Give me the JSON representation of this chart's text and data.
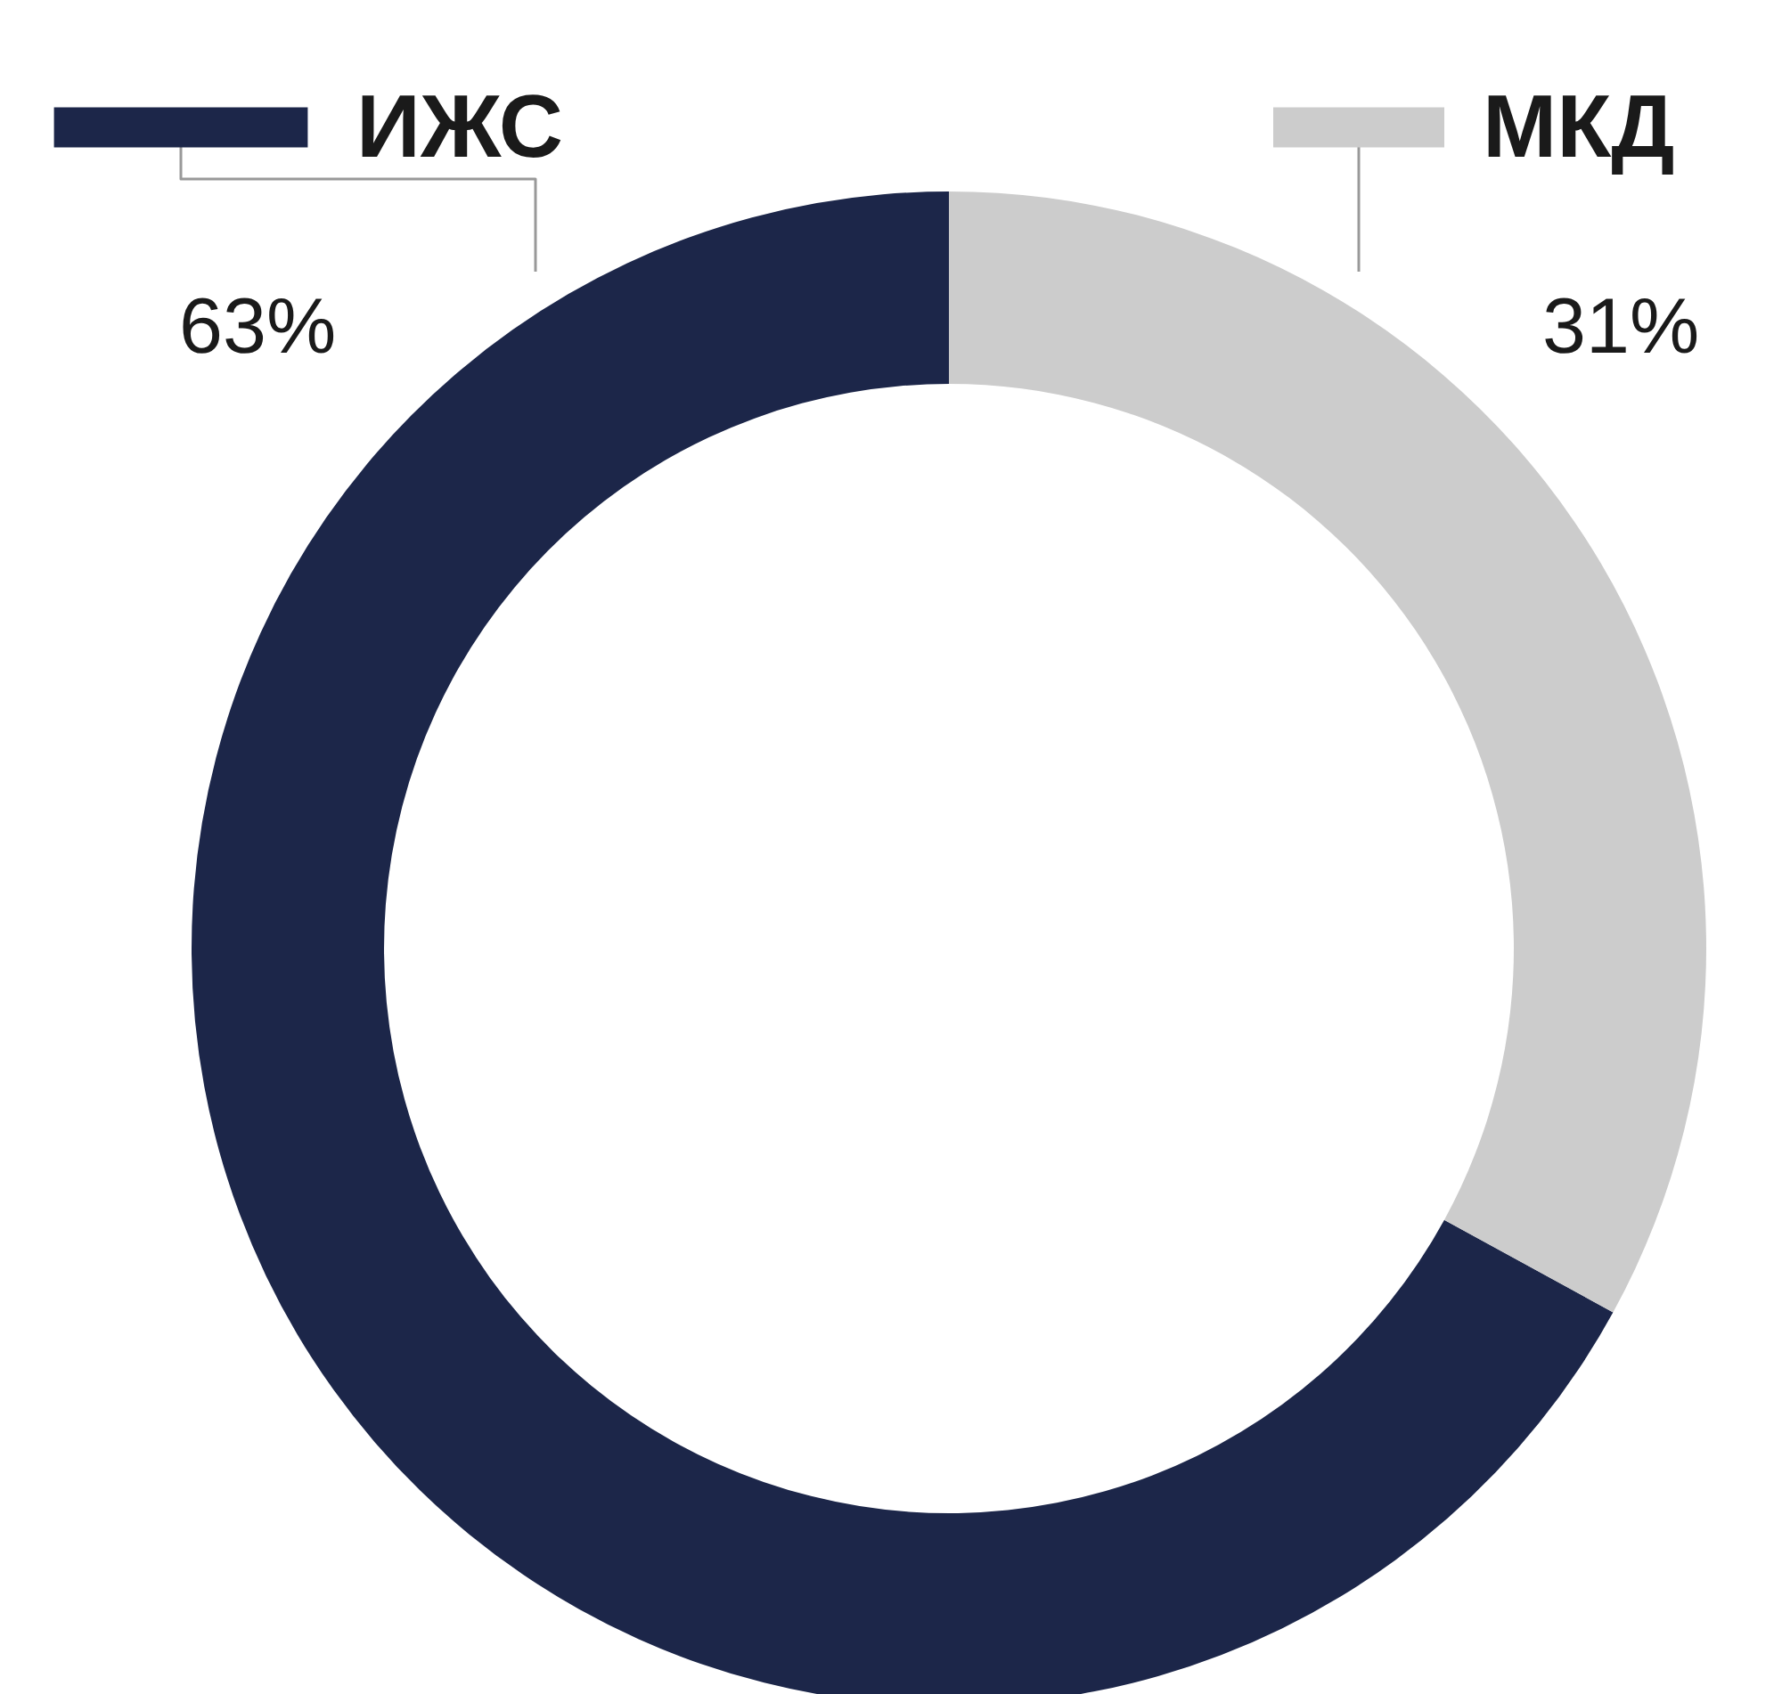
{
  "chart_data": {
    "type": "donut",
    "categories": [
      "ИЖС",
      "МКД"
    ],
    "values": [
      63,
      31
    ],
    "colors": [
      "#1c2649",
      "#cccccc"
    ],
    "value_labels": [
      "63%",
      "31%"
    ],
    "legend": "top"
  }
}
